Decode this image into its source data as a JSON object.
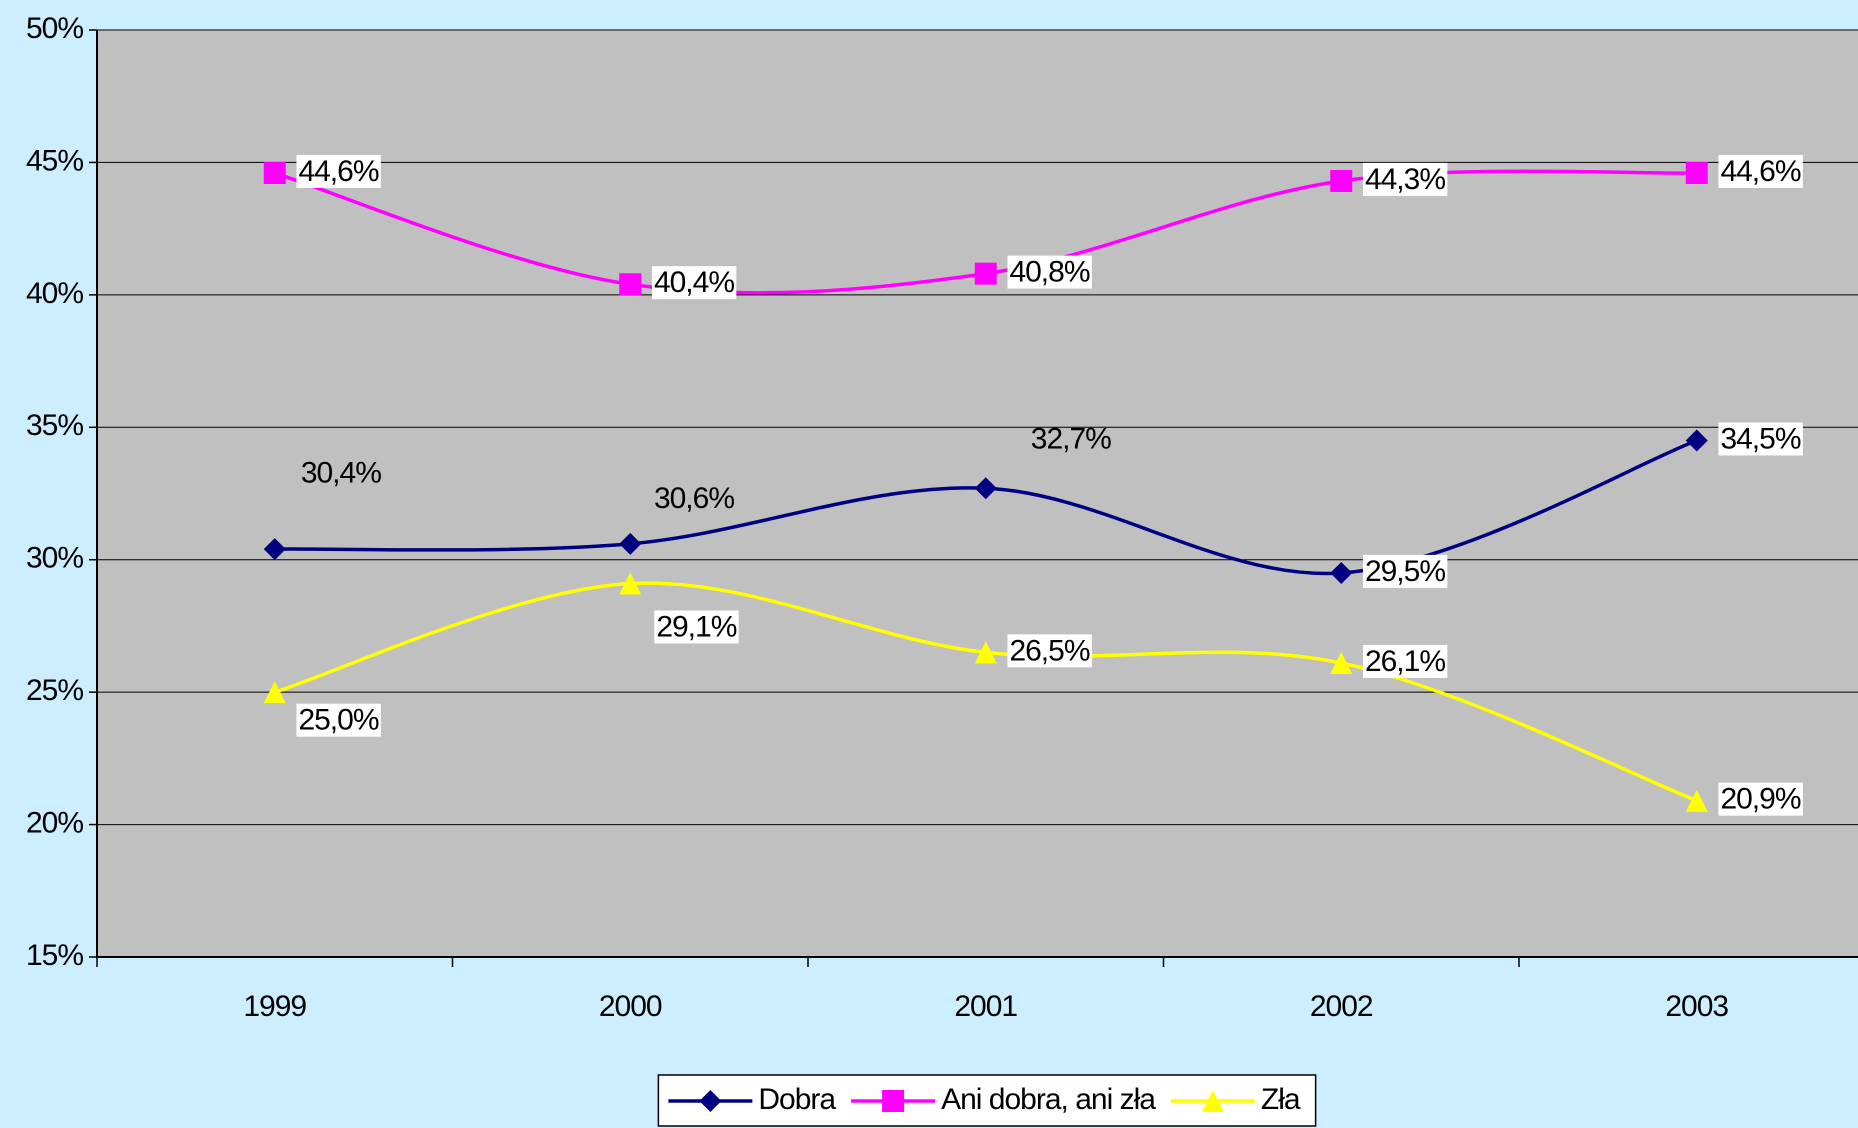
{
  "chart_data": {
    "type": "line",
    "categories": [
      "1999",
      "2000",
      "2001",
      "2002",
      "2003"
    ],
    "series": [
      {
        "name": "Dobra",
        "color": "#000080",
        "values": [
          30.4,
          30.6,
          32.7,
          29.5,
          34.5
        ],
        "value_labels": [
          "30,4%",
          "30,6%",
          "32,7%",
          "29,5%",
          "34,5%"
        ]
      },
      {
        "name": "Ani dobra, ani zła",
        "color": "#ff00ff",
        "values": [
          44.6,
          40.4,
          40.8,
          44.3,
          44.6
        ],
        "value_labels": [
          "44,6%",
          "40,4%",
          "40,8%",
          "44,3%",
          "44,6%"
        ]
      },
      {
        "name": "Zła",
        "color": "#ffff00",
        "values": [
          25.0,
          29.1,
          26.5,
          26.1,
          20.9
        ],
        "value_labels": [
          "25,0%",
          "29,1%",
          "26,5%",
          "26,1%",
          "20,9%"
        ]
      }
    ],
    "ylim": [
      15,
      50
    ],
    "yticks": [
      {
        "value": 15,
        "label": "15%"
      },
      {
        "value": 20,
        "label": "20%"
      },
      {
        "value": 25,
        "label": "25%"
      },
      {
        "value": 30,
        "label": "30%"
      },
      {
        "value": 35,
        "label": "35%"
      },
      {
        "value": 40,
        "label": "40%"
      },
      {
        "value": 45,
        "label": "45%"
      },
      {
        "value": 50,
        "label": "50%"
      }
    ],
    "grid": true,
    "legend": "bottom"
  }
}
